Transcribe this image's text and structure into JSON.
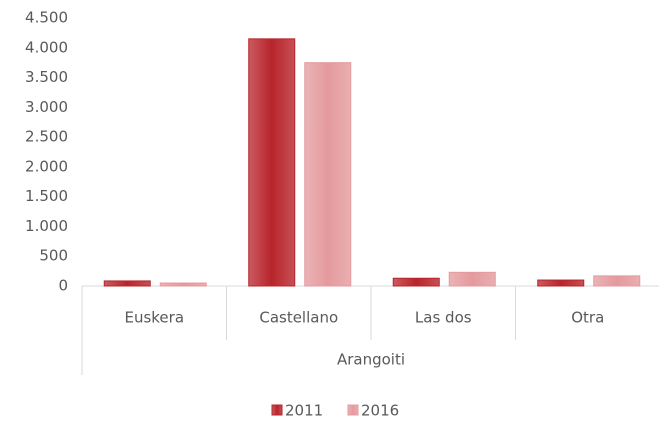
{
  "chart_data": {
    "type": "bar",
    "categories": [
      "Euskera",
      "Castellano",
      "Las dos",
      "Otra"
    ],
    "group_label": "Arangoiti",
    "series": [
      {
        "name": "2011",
        "color": "#b8242b",
        "values": [
          85,
          4150,
          130,
          100
        ]
      },
      {
        "name": "2016",
        "color": "#e49a9d",
        "values": [
          50,
          3750,
          230,
          170
        ]
      }
    ],
    "ylim": [
      0,
      4500
    ],
    "yticks": [
      0,
      500,
      {
        "value": 1000,
        "label": "1.000"
      },
      {
        "value": 1500,
        "label": "1.500"
      },
      {
        "value": 2000,
        "label": "2.000"
      },
      {
        "value": 2500,
        "label": "2.500"
      },
      {
        "value": 3000,
        "label": "3.000"
      },
      {
        "value": 3500,
        "label": "3.500"
      },
      {
        "value": 4000,
        "label": "4.000"
      },
      {
        "value": 4500,
        "label": "4.500"
      }
    ],
    "grid": false,
    "legend": "bottom"
  }
}
